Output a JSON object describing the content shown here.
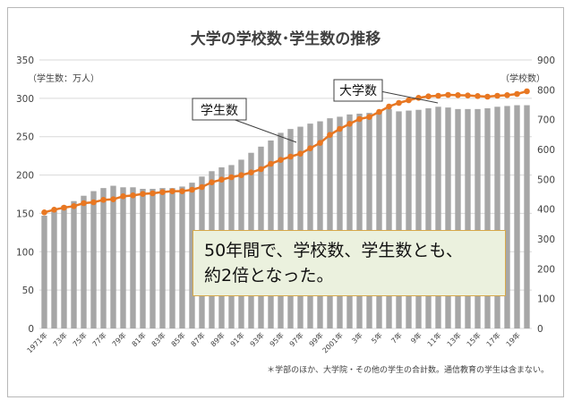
{
  "chart_data": {
    "type": "bar+line",
    "title": "大学の学校数･学生数の推移",
    "y_left_label": "（学生数：万人）",
    "y_right_label": "（学校数）",
    "y_left_lim": [
      0,
      350
    ],
    "y_left_ticks": [
      0,
      50,
      100,
      150,
      200,
      250,
      300,
      350
    ],
    "y_right_lim": [
      0,
      900
    ],
    "y_right_ticks": [
      0,
      100,
      200,
      300,
      400,
      500,
      600,
      700,
      800,
      900
    ],
    "x_tick_labels": [
      "1971年",
      "73年",
      "75年",
      "77年",
      "79年",
      "81年",
      "83年",
      "85年",
      "87年",
      "89年",
      "91年",
      "93年",
      "95年",
      "97年",
      "99年",
      "2001年",
      "3年",
      "5年",
      "7年",
      "9年",
      "11年",
      "13年",
      "15年",
      "17年",
      "19年"
    ],
    "years": [
      1971,
      1972,
      1973,
      1974,
      1975,
      1976,
      1977,
      1978,
      1979,
      1980,
      1981,
      1982,
      1983,
      1984,
      1985,
      1986,
      1987,
      1988,
      1989,
      1990,
      1991,
      1992,
      1993,
      1994,
      1995,
      1996,
      1997,
      1998,
      1999,
      2000,
      2001,
      2002,
      2003,
      2004,
      2005,
      2006,
      2007,
      2008,
      2009,
      2010,
      2011,
      2012,
      2013,
      2014,
      2015,
      2016,
      2017,
      2018,
      2019,
      2020
    ],
    "series": [
      {
        "name": "学生数",
        "type": "bar",
        "axis": "left",
        "color": "#a6a6a6",
        "values": [
          147,
          153,
          160,
          166,
          173,
          179,
          183,
          186,
          184,
          184,
          182,
          182,
          183,
          183,
          185,
          190,
          198,
          205,
          210,
          213,
          220,
          229,
          237,
          245,
          255,
          260,
          263,
          267,
          270,
          274,
          276,
          279,
          280,
          281,
          283,
          286,
          283,
          284,
          285,
          287,
          289,
          288,
          286,
          286,
          286,
          287,
          289,
          290,
          291,
          291
        ]
      },
      {
        "name": "大学数",
        "type": "line",
        "axis": "right",
        "color": "#e87722",
        "values": [
          389,
          398,
          405,
          410,
          420,
          423,
          431,
          433,
          443,
          446,
          451,
          453,
          457,
          460,
          460,
          465,
          474,
          490,
          499,
          507,
          514,
          523,
          534,
          552,
          565,
          576,
          586,
          604,
          622,
          649,
          669,
          686,
          702,
          709,
          726,
          744,
          756,
          765,
          773,
          778,
          780,
          783,
          782,
          781,
          779,
          777,
          780,
          782,
          786,
          795
        ]
      }
    ],
    "callouts": [
      "学生数",
      "大学数"
    ],
    "annotation": [
      "50年間で、学校数、学生数とも、",
      "約2倍となった。"
    ],
    "footnote": "＊学部のほか、大学院・その他の学生の合計数。通信教育の学生は含まない。"
  }
}
